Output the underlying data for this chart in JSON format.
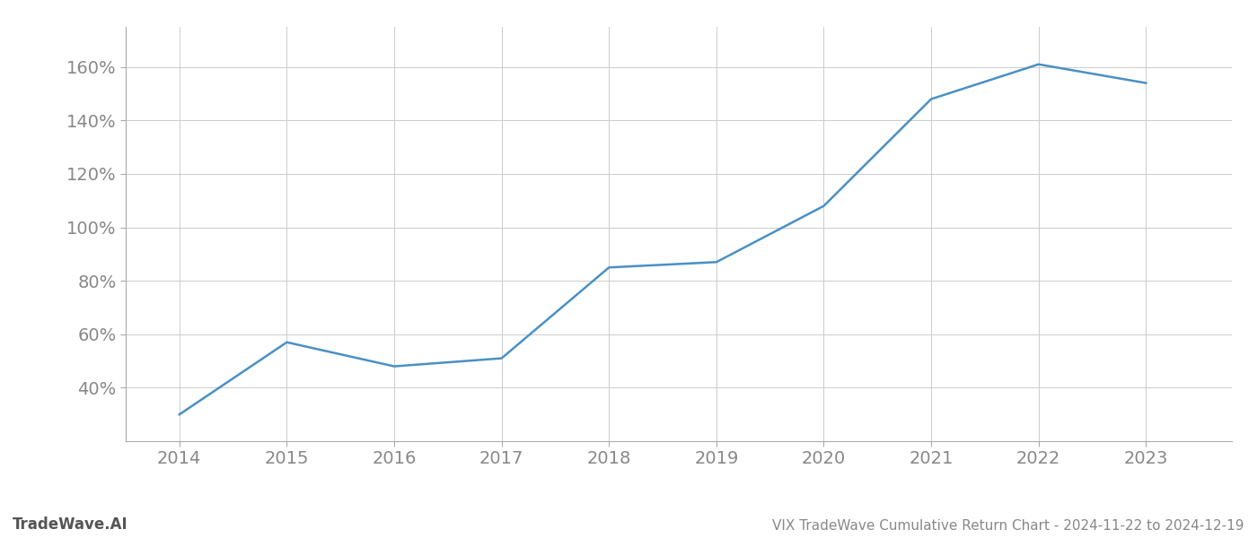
{
  "title": "VIX TradeWave Cumulative Return Chart - 2024-11-22 to 2024-12-19",
  "watermark": "TradeWave.AI",
  "x_values": [
    2014,
    2015,
    2016,
    2017,
    2018,
    2019,
    2020,
    2021,
    2022,
    2023
  ],
  "y_values": [
    30,
    57,
    48,
    51,
    85,
    87,
    108,
    148,
    161,
    154
  ],
  "line_color": "#4a90c4",
  "background_color": "#ffffff",
  "grid_color": "#cccccc",
  "ylim": [
    20,
    175
  ],
  "yticks": [
    40,
    60,
    80,
    100,
    120,
    140,
    160
  ],
  "xlim": [
    2013.5,
    2023.8
  ],
  "xticks": [
    2014,
    2015,
    2016,
    2017,
    2018,
    2019,
    2020,
    2021,
    2022,
    2023
  ],
  "title_fontsize": 11,
  "watermark_fontsize": 12,
  "tick_fontsize": 14,
  "line_width": 1.8,
  "tick_color": "#888888",
  "spine_color": "#aaaaaa"
}
